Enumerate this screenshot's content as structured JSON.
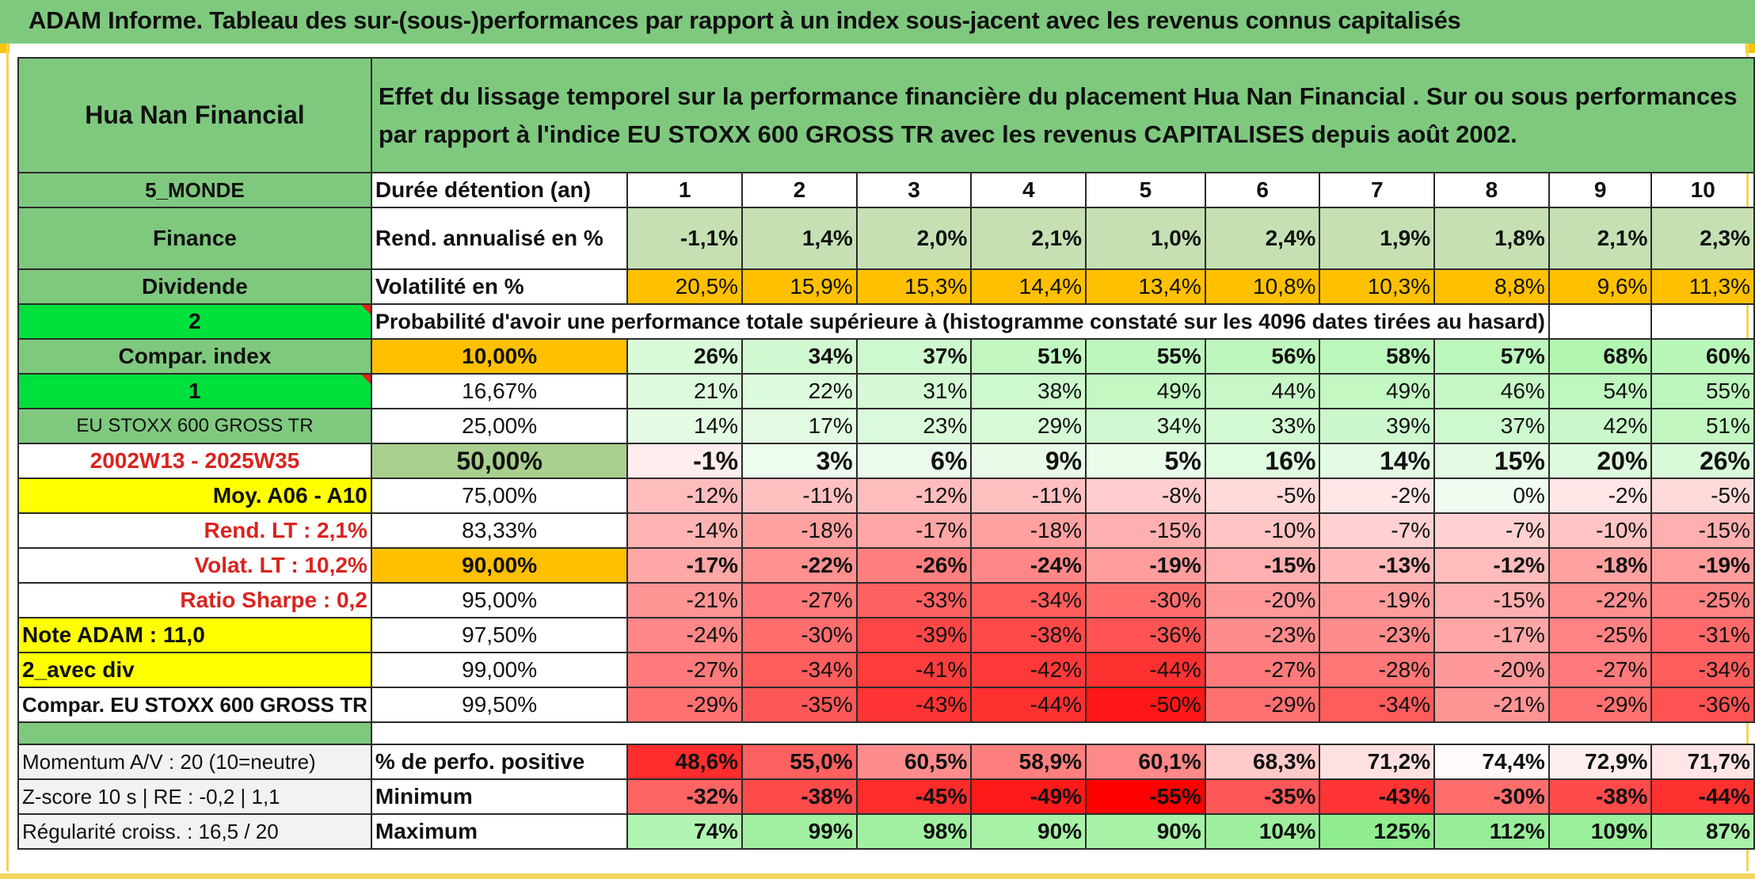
{
  "title": "ADAM Informe. Tableau des sur-(sous-)performances par rapport à un index sous-jacent avec les revenus connus capitalisés",
  "colors": {
    "title_green": "#7fc97f",
    "orange": "#ffc000",
    "yellow": "#ffff00",
    "bright_green": "#00e03c",
    "accent_yellow": "#f4d35e"
  },
  "left": {
    "company": "Hua Nan Financial",
    "region": "5_MONDE",
    "sector": "Finance",
    "type": "Dividende",
    "num2": "2",
    "compar_index": "Compar. index",
    "num1": "1",
    "index_name": "EU STOXX 600 GROSS TR",
    "period": "2002W13 - 2025W35",
    "moy": "Moy. A06 - A10",
    "rend_lt": "Rend. LT :   2,1%",
    "volat_lt": "Volat. LT :   10,2%",
    "sharpe": "Ratio Sharpe :   0,2",
    "note": "Note ADAM : 11,0",
    "avec_div": "2_avec div",
    "compar_full": "Compar. EU STOXX 600 GROSS TR",
    "momentum": "Momentum A/V : 20 (10=neutre)",
    "zscore": "Z-score 10 s | RE : -0,2 | 1,1",
    "regularite": "Régularité croiss. : 16,5 / 20"
  },
  "header_desc": "Effet du lissage temporel sur la performance financière du placement Hua Nan Financial . Sur ou sous performances par rapport à l'indice EU STOXX 600 GROSS TR avec les revenus CAPITALISES depuis août 2002.",
  "labels": {
    "duree": "Durée détention (an)",
    "rend": "Rend. annualisé en %",
    "volat": "Volatilité en %",
    "proba": "Probabilité d'avoir une performance totale supérieure à (histogramme constaté sur les 4096 dates tirées au hasard)",
    "pos": "% de perfo. positive",
    "min": "Minimum",
    "max": "Maximum"
  },
  "years": [
    "1",
    "2",
    "3",
    "4",
    "5",
    "6",
    "7",
    "8",
    "9",
    "10"
  ],
  "rend": [
    "-1,1%",
    "1,4%",
    "2,0%",
    "2,1%",
    "1,0%",
    "2,4%",
    "1,9%",
    "1,8%",
    "2,1%",
    "2,3%"
  ],
  "volat": [
    "20,5%",
    "15,9%",
    "15,3%",
    "14,4%",
    "13,4%",
    "10,8%",
    "10,3%",
    "8,8%",
    "9,6%",
    "11,3%"
  ],
  "percentiles": [
    {
      "label": "10,00%",
      "values": [
        "26%",
        "34%",
        "37%",
        "51%",
        "55%",
        "56%",
        "58%",
        "57%",
        "68%",
        "60%"
      ]
    },
    {
      "label": "16,67%",
      "values": [
        "21%",
        "22%",
        "31%",
        "38%",
        "49%",
        "44%",
        "49%",
        "46%",
        "54%",
        "55%"
      ]
    },
    {
      "label": "25,00%",
      "values": [
        "14%",
        "17%",
        "23%",
        "29%",
        "34%",
        "33%",
        "39%",
        "37%",
        "42%",
        "51%"
      ]
    },
    {
      "label": "50,00%",
      "values": [
        "-1%",
        "3%",
        "6%",
        "9%",
        "5%",
        "16%",
        "14%",
        "15%",
        "20%",
        "26%"
      ]
    },
    {
      "label": "75,00%",
      "values": [
        "-12%",
        "-11%",
        "-12%",
        "-11%",
        "-8%",
        "-5%",
        "-2%",
        "0%",
        "-2%",
        "-5%"
      ]
    },
    {
      "label": "83,33%",
      "values": [
        "-14%",
        "-18%",
        "-17%",
        "-18%",
        "-15%",
        "-10%",
        "-7%",
        "-7%",
        "-10%",
        "-15%"
      ]
    },
    {
      "label": "90,00%",
      "values": [
        "-17%",
        "-22%",
        "-26%",
        "-24%",
        "-19%",
        "-15%",
        "-13%",
        "-12%",
        "-18%",
        "-19%"
      ]
    },
    {
      "label": "95,00%",
      "values": [
        "-21%",
        "-27%",
        "-33%",
        "-34%",
        "-30%",
        "-20%",
        "-19%",
        "-15%",
        "-22%",
        "-25%"
      ]
    },
    {
      "label": "97,50%",
      "values": [
        "-24%",
        "-30%",
        "-39%",
        "-38%",
        "-36%",
        "-23%",
        "-23%",
        "-17%",
        "-25%",
        "-31%"
      ]
    },
    {
      "label": "99,00%",
      "values": [
        "-27%",
        "-34%",
        "-41%",
        "-42%",
        "-44%",
        "-27%",
        "-28%",
        "-20%",
        "-27%",
        "-34%"
      ]
    },
    {
      "label": "99,50%",
      "values": [
        "-29%",
        "-35%",
        "-43%",
        "-44%",
        "-50%",
        "-29%",
        "-34%",
        "-21%",
        "-29%",
        "-36%"
      ]
    }
  ],
  "pos": [
    "48,6%",
    "55,0%",
    "60,5%",
    "58,9%",
    "60,1%",
    "68,3%",
    "71,2%",
    "74,4%",
    "72,9%",
    "71,7%"
  ],
  "min": [
    "-32%",
    "-38%",
    "-45%",
    "-49%",
    "-55%",
    "-35%",
    "-43%",
    "-30%",
    "-38%",
    "-44%"
  ],
  "max": [
    "74%",
    "99%",
    "98%",
    "90%",
    "90%",
    "104%",
    "125%",
    "112%",
    "109%",
    "87%"
  ]
}
